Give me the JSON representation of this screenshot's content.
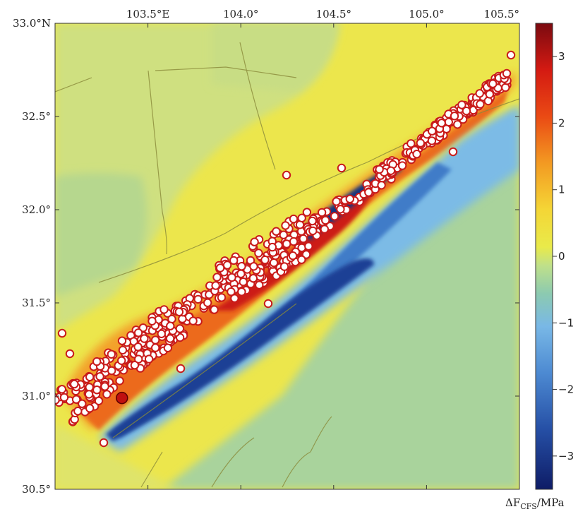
{
  "map": {
    "x_ticks": [
      {
        "value": 103.5,
        "label": "103.5°E"
      },
      {
        "value": 104.0,
        "label": "104.0°"
      },
      {
        "value": 104.5,
        "label": "104.5°"
      },
      {
        "value": 105.0,
        "label": "105.0°"
      },
      {
        "value": 105.5,
        "label": "105.5°"
      }
    ],
    "y_ticks": [
      {
        "value": 33.0,
        "label": "33.0°N"
      },
      {
        "value": 32.5,
        "label": "32.5°"
      },
      {
        "value": 32.0,
        "label": "32.0°"
      },
      {
        "value": 31.5,
        "label": "31.5°"
      },
      {
        "value": 31.0,
        "label": "31.0°"
      },
      {
        "value": 30.5,
        "label": "30.5°"
      }
    ],
    "lon_range": [
      103.0,
      105.5
    ],
    "lat_range": [
      30.5,
      33.0
    ],
    "mainshock": {
      "lon": 103.36,
      "lat": 30.99
    }
  },
  "colorbar": {
    "ticks": [
      "3",
      "2",
      "1",
      "0",
      "−1",
      "−2",
      "−3"
    ],
    "unit_prefix": "ΔF",
    "unit_subscript": "CFS",
    "unit_suffix": "/MPa",
    "colors": [
      "#7a0a10",
      "#d41a12",
      "#f06a14",
      "#f7ae26",
      "#f1e83c",
      "#cfe27e",
      "#8fcaa6",
      "#78b9e6",
      "#4f8fd4",
      "#2a55aa",
      "#0e1c66"
    ]
  }
}
